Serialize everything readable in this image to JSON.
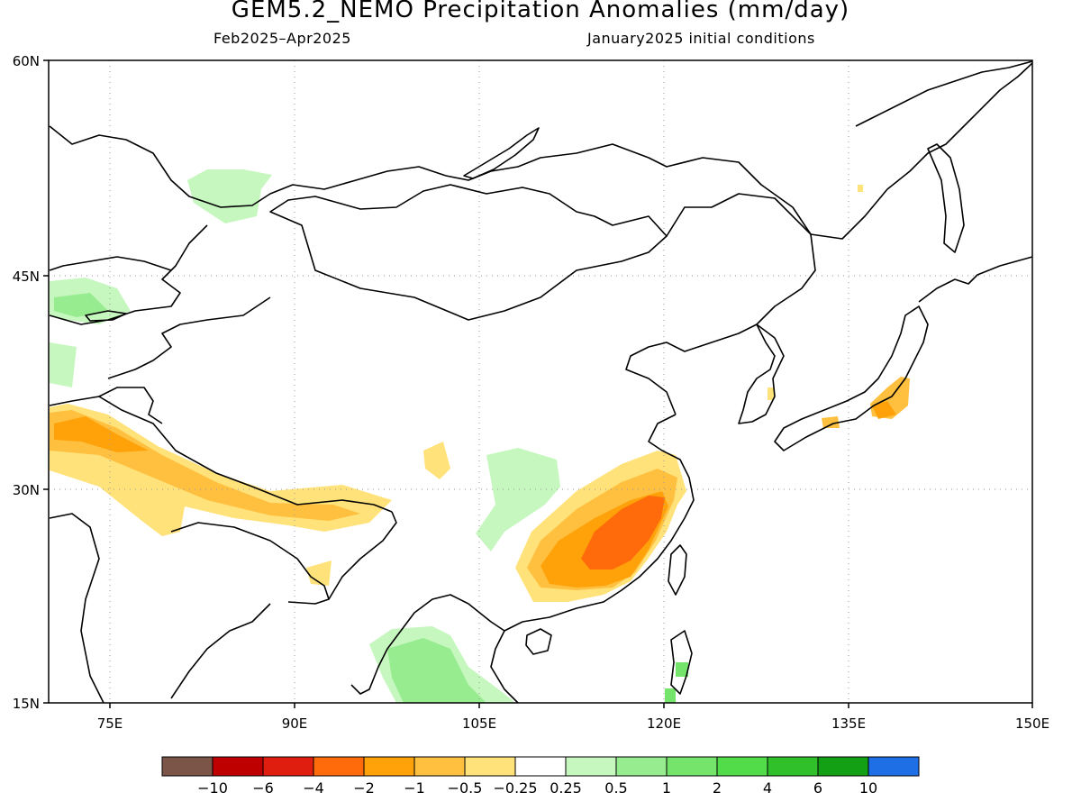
{
  "title": "GEM5.2_NEMO Precipitation Anomalies (mm/day)",
  "period": "Feb2025–Apr2025",
  "init": "January2025 initial conditions",
  "map": {
    "lon_range": [
      70,
      150
    ],
    "lat_range": [
      15,
      60
    ],
    "lon_ticks": [
      "75E",
      "90E",
      "105E",
      "120E",
      "135E",
      "150E"
    ],
    "lat_ticks": [
      "60N",
      "45N",
      "30N",
      "15N"
    ]
  },
  "colorbar": {
    "colors": [
      "#7a5548",
      "#bf0000",
      "#e01e0f",
      "#ff6b0a",
      "#ffa20a",
      "#ffc040",
      "#ffe27a",
      "#ffffff",
      "#c6f7bf",
      "#96ec8e",
      "#74e46a",
      "#52dc4a",
      "#30c02a",
      "#14a014",
      "#1e6ee6"
    ],
    "labels": [
      "−10",
      "−6",
      "−4",
      "−2",
      "−1",
      "−0.5",
      "−0.25",
      "0.25",
      "0.5",
      "1",
      "2",
      "4",
      "6",
      "10"
    ]
  }
}
